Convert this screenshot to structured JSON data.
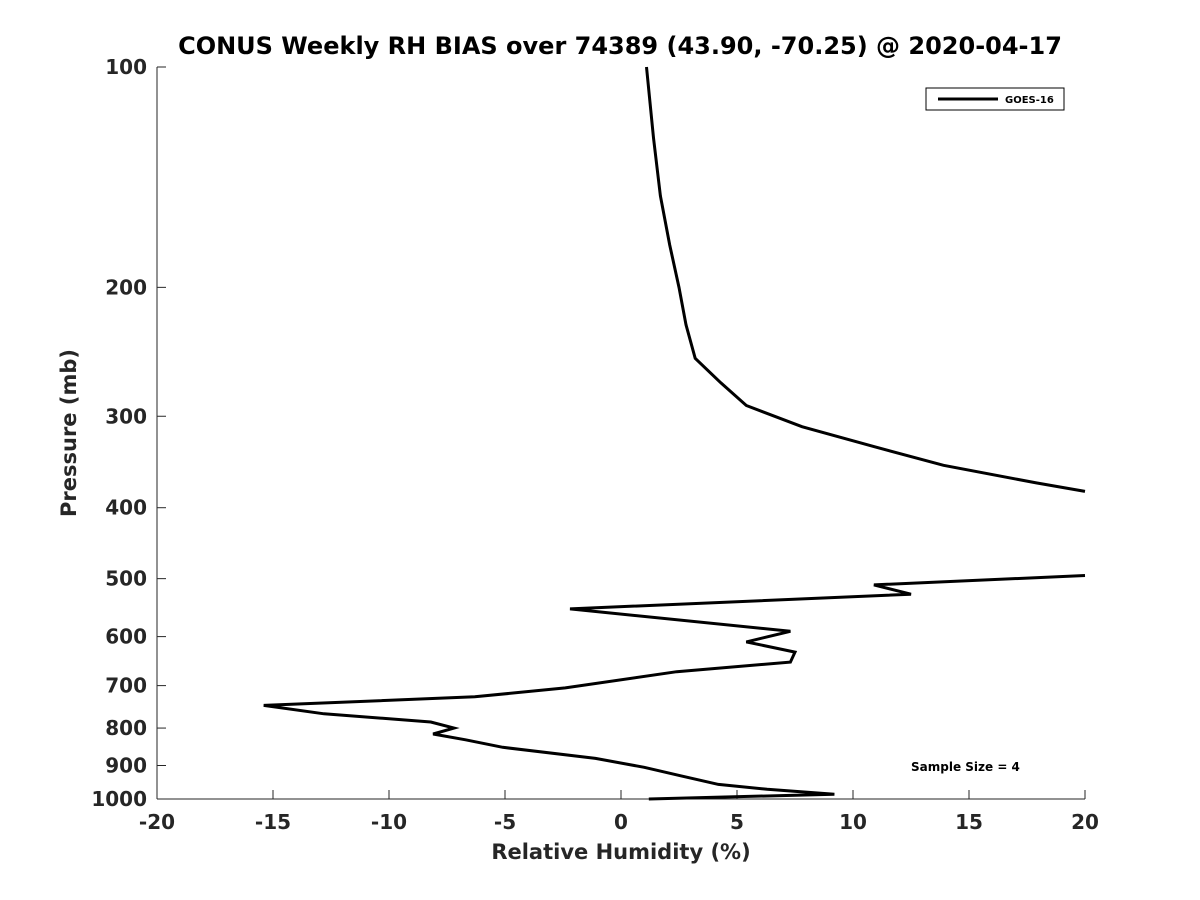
{
  "chart_data": {
    "type": "line",
    "title": "CONUS Weekly RH BIAS over 74389 (43.90, -70.25) @ 2020-04-17",
    "xlabel": "Relative Humidity (%)",
    "ylabel": "Pressure (mb)",
    "xlim": [
      -20,
      20
    ],
    "ylim": [
      100,
      1000
    ],
    "y_scale": "log",
    "y_reversed": true,
    "grid": false,
    "legend_position": "top-right",
    "x_ticks": [
      -20,
      -15,
      -10,
      -5,
      0,
      5,
      10,
      15,
      20
    ],
    "x_tick_labels": [
      "-20",
      "-15",
      "-10",
      "-5",
      "0",
      "5",
      "10",
      "15",
      "20"
    ],
    "y_ticks": [
      100,
      200,
      300,
      400,
      500,
      600,
      700,
      800,
      900,
      1000
    ],
    "y_tick_labels": [
      "100",
      "200",
      "300",
      "400",
      "500",
      "600",
      "700",
      "800",
      "900",
      "1000"
    ],
    "annotation": "Sample Size = 4",
    "colors": {
      "line": "#000000",
      "axis": "#262626",
      "background": "#ffffff"
    },
    "series": [
      {
        "name": "GOES-16",
        "color": "#000000",
        "segments": [
          [
            {
              "x": 1.1,
              "y": 100
            },
            {
              "x": 1.4,
              "y": 125
            },
            {
              "x": 1.7,
              "y": 150
            },
            {
              "x": 2.1,
              "y": 175
            },
            {
              "x": 2.5,
              "y": 200
            },
            {
              "x": 2.8,
              "y": 225
            },
            {
              "x": 3.2,
              "y": 250
            },
            {
              "x": 4.3,
              "y": 270
            },
            {
              "x": 5.4,
              "y": 290
            },
            {
              "x": 7.8,
              "y": 310
            },
            {
              "x": 10.9,
              "y": 330
            },
            {
              "x": 13.9,
              "y": 350
            },
            {
              "x": 17.9,
              "y": 370
            },
            {
              "x": 20.0,
              "y": 380
            }
          ],
          [
            {
              "x": 20.0,
              "y": 495
            },
            {
              "x": 10.9,
              "y": 510
            },
            {
              "x": 12.5,
              "y": 525
            },
            {
              "x": -2.2,
              "y": 550
            },
            {
              "x": 7.3,
              "y": 590
            },
            {
              "x": 5.4,
              "y": 610
            },
            {
              "x": 7.5,
              "y": 630
            },
            {
              "x": 7.3,
              "y": 650
            },
            {
              "x": 2.4,
              "y": 670
            },
            {
              "x": -2.4,
              "y": 705
            },
            {
              "x": -6.3,
              "y": 725
            },
            {
              "x": -15.4,
              "y": 745
            },
            {
              "x": -12.8,
              "y": 765
            },
            {
              "x": -8.2,
              "y": 785
            },
            {
              "x": -7.2,
              "y": 800
            },
            {
              "x": -8.1,
              "y": 815
            },
            {
              "x": -6.7,
              "y": 830
            },
            {
              "x": -5.1,
              "y": 850
            },
            {
              "x": -1.1,
              "y": 880
            },
            {
              "x": 1.0,
              "y": 905
            },
            {
              "x": 2.6,
              "y": 930
            },
            {
              "x": 4.2,
              "y": 955
            },
            {
              "x": 6.3,
              "y": 970
            },
            {
              "x": 9.2,
              "y": 985
            },
            {
              "x": 1.2,
              "y": 1000
            }
          ]
        ]
      }
    ]
  }
}
